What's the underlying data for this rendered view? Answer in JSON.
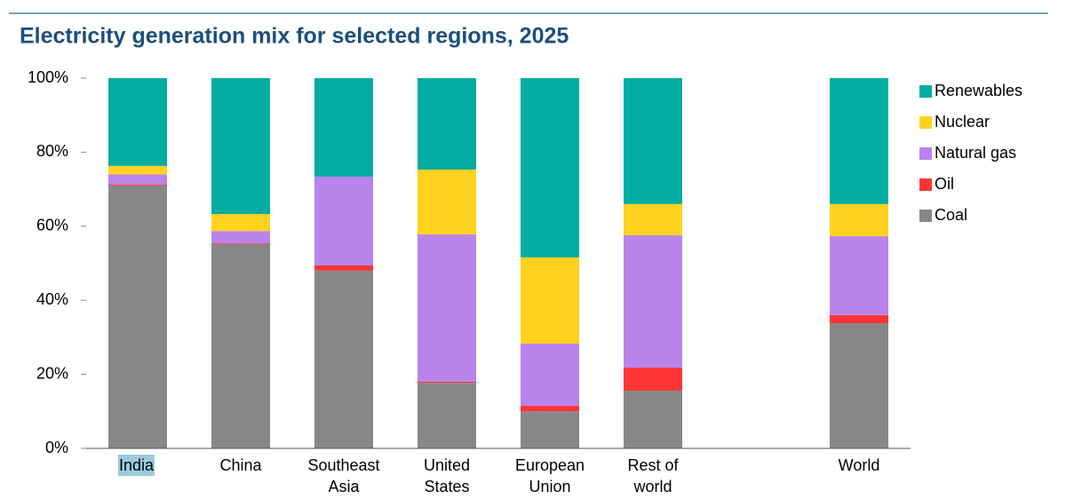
{
  "chart_data": {
    "type": "stacked_bar",
    "title": "Electricity generation mix for selected regions, 2025",
    "categories": [
      "India",
      "China",
      "Southeast Asia",
      "United States",
      "European Union",
      "Rest of world",
      null,
      "World"
    ],
    "series": [
      {
        "name": "Coal",
        "color": "#878787",
        "values": [
          71,
          55.2,
          48,
          17.7,
          10,
          15.6,
          null,
          33.8
        ]
      },
      {
        "name": "Oil",
        "color": "#ff3535",
        "values": [
          0.3,
          0.2,
          1.4,
          0.3,
          1.5,
          6.2,
          null,
          2.2
        ]
      },
      {
        "name": "Natural gas",
        "color": "#b884ec",
        "values": [
          2.7,
          3.3,
          24,
          39.8,
          16.8,
          35.8,
          null,
          21.3
        ]
      },
      {
        "name": "Nuclear",
        "color": "#ffd21f",
        "values": [
          2.3,
          4.6,
          0,
          17.5,
          23.3,
          8.4,
          null,
          8.7
        ]
      },
      {
        "name": "Renewables",
        "color": "#00ada0",
        "values": [
          23.7,
          36.7,
          26.6,
          24.7,
          48.4,
          34,
          null,
          34
        ]
      }
    ],
    "ylim": [
      0,
      100
    ],
    "yticks": [
      {
        "value": 0,
        "label": "0%"
      },
      {
        "value": 20,
        "label": "20%"
      },
      {
        "value": 40,
        "label": "40%"
      },
      {
        "value": 60,
        "label": "60%"
      },
      {
        "value": 80,
        "label": "80%"
      },
      {
        "value": 100,
        "label": "100%"
      }
    ],
    "grid": false,
    "legend": "right"
  }
}
